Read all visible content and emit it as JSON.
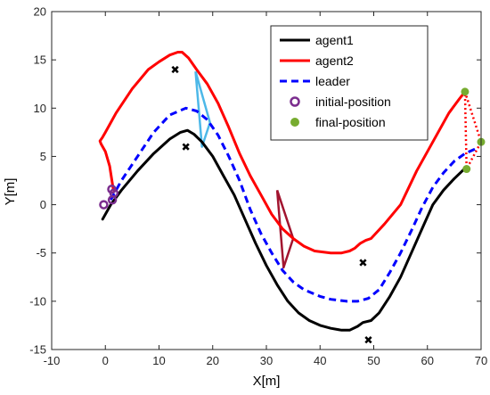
{
  "chart_data": {
    "type": "line",
    "xlabel": "X[m]",
    "ylabel": "Y[m]",
    "xlim": [
      -10,
      70
    ],
    "ylim": [
      -15,
      20
    ],
    "x_ticks": [
      -10,
      0,
      10,
      20,
      30,
      40,
      50,
      60,
      70
    ],
    "y_ticks": [
      -15,
      -10,
      -5,
      0,
      5,
      10,
      15,
      20
    ],
    "grid": false,
    "legend_position": "top-right",
    "series": [
      {
        "name": "agent1",
        "color": "#000000",
        "style": "solid",
        "points": [
          [
            -0.5,
            -1.5
          ],
          [
            1,
            0
          ],
          [
            3,
            1.5
          ],
          [
            6,
            3.5
          ],
          [
            9,
            5.3
          ],
          [
            12,
            6.8
          ],
          [
            14,
            7.5
          ],
          [
            15.3,
            7.7
          ],
          [
            16.5,
            7.3
          ],
          [
            18,
            6.5
          ],
          [
            20,
            5
          ],
          [
            22,
            3
          ],
          [
            24,
            1
          ],
          [
            26,
            -1.5
          ],
          [
            28,
            -4
          ],
          [
            30,
            -6.3
          ],
          [
            32,
            -8.3
          ],
          [
            34,
            -10
          ],
          [
            36,
            -11.2
          ],
          [
            38,
            -12
          ],
          [
            40,
            -12.5
          ],
          [
            42,
            -12.8
          ],
          [
            44,
            -13
          ],
          [
            45.5,
            -13
          ],
          [
            47,
            -12.6
          ],
          [
            48,
            -12.2
          ],
          [
            49.5,
            -12
          ],
          [
            51,
            -11.2
          ],
          [
            53,
            -9.5
          ],
          [
            55,
            -7.5
          ],
          [
            57,
            -5
          ],
          [
            59,
            -2.5
          ],
          [
            61,
            0
          ],
          [
            63,
            1.5
          ],
          [
            65,
            2.7
          ],
          [
            66.5,
            3.5
          ],
          [
            67,
            3.8
          ]
        ]
      },
      {
        "name": "agent2",
        "color": "#ff0000",
        "style": "solid",
        "points": [
          [
            1.5,
            1.5
          ],
          [
            0.8,
            4
          ],
          [
            0,
            5.5
          ],
          [
            -0.8,
            6.3
          ],
          [
            -1,
            6.6
          ],
          [
            -0.5,
            7
          ],
          [
            0,
            7.5
          ],
          [
            2,
            9.5
          ],
          [
            5,
            12
          ],
          [
            8,
            14
          ],
          [
            10,
            14.8
          ],
          [
            12,
            15.5
          ],
          [
            13.5,
            15.8
          ],
          [
            14.3,
            15.8
          ],
          [
            15.5,
            15.2
          ],
          [
            17,
            14
          ],
          [
            19,
            12.5
          ],
          [
            21,
            10.5
          ],
          [
            23,
            8
          ],
          [
            25,
            5.3
          ],
          [
            27,
            3
          ],
          [
            29,
            1
          ],
          [
            31,
            -1
          ],
          [
            33,
            -2.5
          ],
          [
            35,
            -3.5
          ],
          [
            37,
            -4.3
          ],
          [
            39,
            -4.8
          ],
          [
            42,
            -5
          ],
          [
            44,
            -5
          ],
          [
            45.5,
            -4.8
          ],
          [
            46.5,
            -4.5
          ],
          [
            47.5,
            -4
          ],
          [
            48.5,
            -3.7
          ],
          [
            49.5,
            -3.5
          ],
          [
            52,
            -2
          ],
          [
            55,
            0
          ],
          [
            58,
            3.5
          ],
          [
            61,
            6.5
          ],
          [
            64,
            9.5
          ],
          [
            66,
            11
          ],
          [
            67,
            11.7
          ]
        ]
      },
      {
        "name": "leader",
        "color": "#0000ff",
        "style": "dashed",
        "points": [
          [
            1,
            0.5
          ],
          [
            3,
            2.5
          ],
          [
            6,
            5
          ],
          [
            9,
            7.5
          ],
          [
            12,
            9.3
          ],
          [
            15,
            10
          ],
          [
            17,
            9.7
          ],
          [
            19,
            8.8
          ],
          [
            21,
            7.2
          ],
          [
            23,
            5
          ],
          [
            25,
            2.5
          ],
          [
            27,
            -0.5
          ],
          [
            29,
            -3
          ],
          [
            31,
            -5
          ],
          [
            33,
            -6.8
          ],
          [
            35,
            -8
          ],
          [
            37,
            -8.8
          ],
          [
            40,
            -9.5
          ],
          [
            42,
            -9.8
          ],
          [
            45,
            -10
          ],
          [
            47,
            -10
          ],
          [
            49,
            -9.7
          ],
          [
            51,
            -8.8
          ],
          [
            53,
            -7
          ],
          [
            55,
            -5
          ],
          [
            57,
            -2.7
          ],
          [
            59,
            -0.3
          ],
          [
            61,
            1.8
          ],
          [
            63,
            3.3
          ],
          [
            65,
            4.5
          ],
          [
            67,
            5.3
          ],
          [
            69,
            5.8
          ]
        ]
      },
      {
        "name": "initial-position",
        "color": "#7b2d8e",
        "style": "circle-marker",
        "points": [
          [
            -0.3,
            0
          ],
          [
            1.3,
            0.5
          ],
          [
            1.6,
            1.2
          ],
          [
            1.2,
            1.6
          ]
        ]
      },
      {
        "name": "final-position",
        "color": "#77ac30",
        "style": "filled-marker",
        "points": [
          [
            67,
            11.7
          ],
          [
            67.3,
            3.7
          ],
          [
            70,
            6.5
          ]
        ]
      }
    ],
    "obstacles": [
      [
        13,
        14
      ],
      [
        15,
        6
      ],
      [
        48,
        -6
      ],
      [
        49,
        -14
      ]
    ],
    "formations": [
      {
        "color": "#4db8e8",
        "style": "solid",
        "points": [
          [
            16.8,
            13.8
          ],
          [
            19.5,
            8.5
          ],
          [
            18,
            6
          ],
          [
            16.8,
            13.8
          ]
        ]
      },
      {
        "color": "#a2142f",
        "style": "solid",
        "points": [
          [
            32,
            1.5
          ],
          [
            35,
            -3.5
          ],
          [
            33.2,
            -6.5
          ],
          [
            32,
            1.5
          ]
        ]
      },
      {
        "color": "#ff0000",
        "style": "dotted",
        "points": [
          [
            67,
            11.7
          ],
          [
            70,
            6.5
          ],
          [
            67.3,
            3.7
          ],
          [
            67,
            11.7
          ]
        ]
      }
    ]
  }
}
